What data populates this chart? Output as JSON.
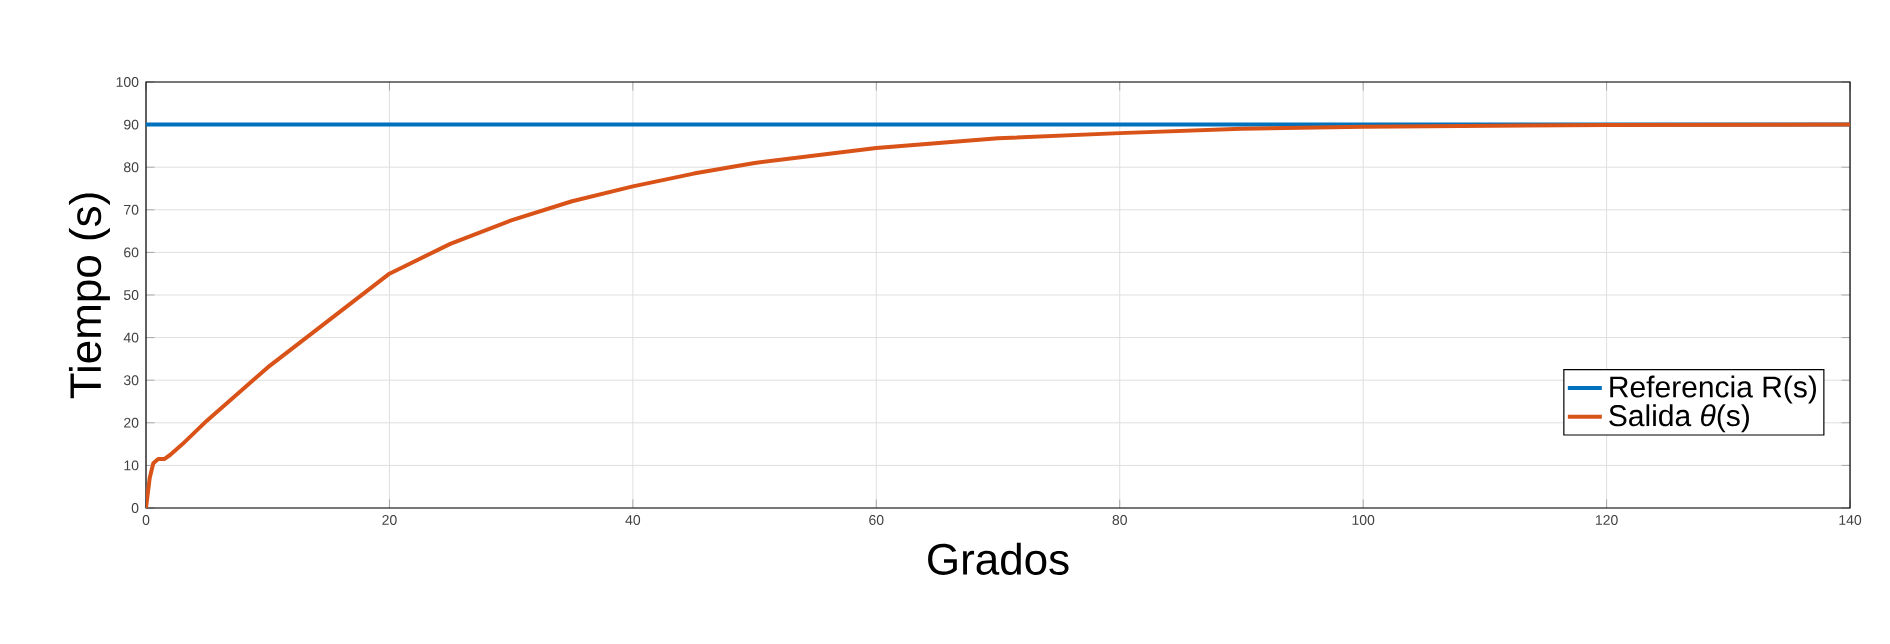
{
  "chart_data": {
    "type": "line",
    "xlabel": "Grados",
    "ylabel": "Tiempo (s)",
    "xlim": [
      0,
      140
    ],
    "xticks": [
      0,
      20,
      40,
      60,
      80,
      100,
      120,
      140
    ],
    "ylim": [
      0,
      100
    ],
    "yticks": [
      0,
      10,
      20,
      30,
      40,
      50,
      60,
      70,
      80,
      90,
      100
    ],
    "grid": true,
    "legend": "bottom right",
    "line_style": "solid",
    "marker": "none",
    "series": [
      {
        "name": "Referencia R(s)",
        "color": "#0072bd",
        "x": [
          0,
          140
        ],
        "values": [
          90,
          90
        ]
      },
      {
        "name": "Salida *θ*(s)",
        "color": "#d95319",
        "x": [
          0,
          0.3,
          0.6,
          1,
          1.5,
          2,
          3,
          5,
          8,
          10,
          15,
          20,
          25,
          30,
          35,
          40,
          45,
          50,
          60,
          70,
          80,
          90,
          100,
          120,
          140
        ],
        "values": [
          0,
          7,
          10.5,
          11.5,
          11.5,
          12.5,
          15,
          20.5,
          28,
          33,
          44,
          55,
          62,
          67.5,
          72,
          75.5,
          78.5,
          81,
          84.5,
          86.8,
          88,
          89,
          89.5,
          89.9,
          90
        ]
      }
    ]
  }
}
